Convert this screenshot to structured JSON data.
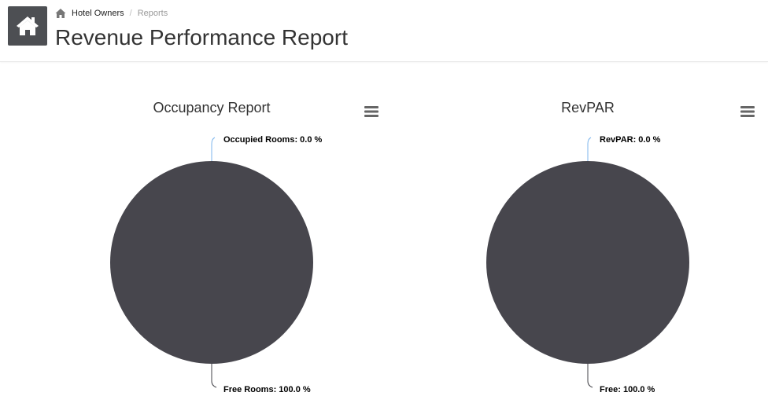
{
  "breadcrumb": {
    "home_icon": "home-icon",
    "items": [
      "Hotel Owners",
      "Reports"
    ]
  },
  "header": {
    "tile_icon": "house-icon",
    "title": "Revenue Performance Report"
  },
  "colors": {
    "tile": "#4d4f53",
    "slice_main": "#47464d",
    "connector_top": "#7cb5ec",
    "connector_bottom": "#434348"
  },
  "chart_data": [
    {
      "type": "pie",
      "title": "Occupancy Report",
      "menu_icon": "hamburger-menu-icon",
      "slices": [
        {
          "name": "Occupied Rooms",
          "value": 0.0,
          "label": "Occupied Rooms: 0.0 %"
        },
        {
          "name": "Free Rooms",
          "value": 100.0,
          "label": "Free Rooms: 100.0 %"
        }
      ]
    },
    {
      "type": "pie",
      "title": "RevPAR",
      "menu_icon": "hamburger-menu-icon",
      "slices": [
        {
          "name": "RevPAR",
          "value": 0.0,
          "label": "RevPAR: 0.0 %"
        },
        {
          "name": "Free",
          "value": 100.0,
          "label": "Free: 100.0 %"
        }
      ]
    }
  ]
}
